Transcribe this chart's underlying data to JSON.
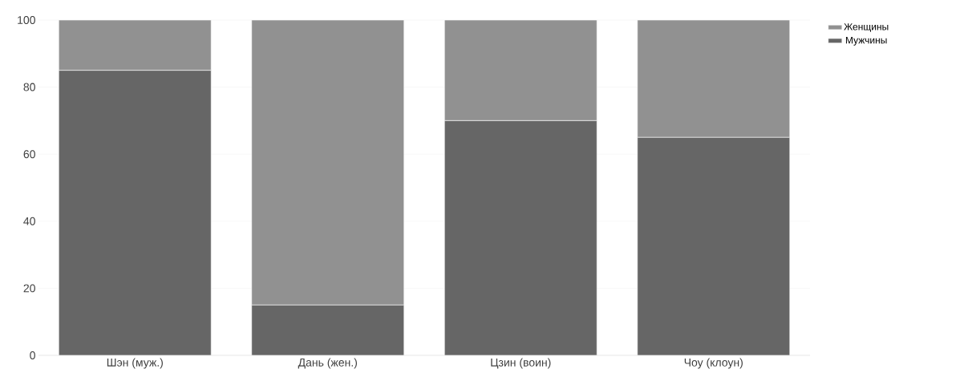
{
  "chart_data": {
    "type": "bar",
    "stacked": true,
    "categories": [
      "Шэн (муж.)",
      "Дань (жен.)",
      "Цзин (воин)",
      "Чоу (клоун)"
    ],
    "series": [
      {
        "name": "Мужчины",
        "color": "#666666",
        "values": [
          85,
          15,
          70,
          65
        ]
      },
      {
        "name": "Женщины",
        "color": "#919191",
        "values": [
          15,
          85,
          30,
          35
        ]
      }
    ],
    "ylim": [
      0,
      100
    ],
    "yticks": [
      0,
      20,
      40,
      60,
      80,
      100
    ],
    "grid": "y",
    "legend": "top right"
  }
}
